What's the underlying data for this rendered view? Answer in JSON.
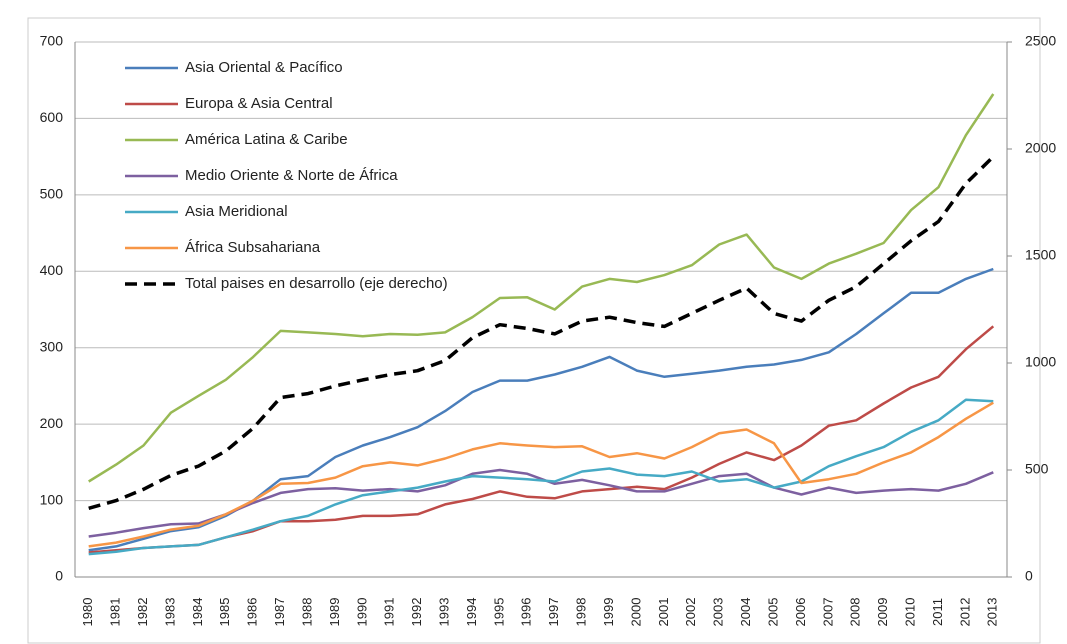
{
  "chart_data": {
    "type": "line",
    "categories": [
      "1980",
      "1981",
      "1982",
      "1983",
      "1984",
      "1985",
      "1986",
      "1987",
      "1988",
      "1989",
      "1990",
      "1991",
      "1992",
      "1993",
      "1994",
      "1995",
      "1996",
      "1997",
      "1998",
      "1999",
      "2000",
      "2001",
      "2002",
      "2003",
      "2004",
      "2005",
      "2006",
      "2007",
      "2008",
      "2009",
      "2010",
      "2011",
      "2012",
      "2013"
    ],
    "series": [
      {
        "name": "Asia Oriental & Pacífico",
        "color": "#4a7ebb",
        "values": [
          35,
          40,
          50,
          60,
          65,
          80,
          100,
          128,
          132,
          157,
          172,
          183,
          196,
          217,
          242,
          257,
          257,
          265,
          275,
          288,
          270,
          262,
          266,
          270,
          275,
          278,
          284,
          294,
          318,
          345,
          372,
          372,
          390,
          403
        ]
      },
      {
        "name": "Europa & Asia Central",
        "color": "#be4b48",
        "values": [
          32,
          35,
          38,
          40,
          42,
          52,
          60,
          73,
          73,
          75,
          80,
          80,
          82,
          95,
          102,
          112,
          105,
          103,
          112,
          115,
          118,
          115,
          130,
          148,
          163,
          153,
          172,
          198,
          205,
          227,
          248,
          262,
          298,
          328
        ]
      },
      {
        "name": "América Latina & Caribe",
        "color": "#98b954",
        "values": [
          125,
          147,
          172,
          215,
          237,
          258,
          288,
          322,
          320,
          318,
          315,
          318,
          317,
          320,
          340,
          365,
          366,
          350,
          380,
          390,
          386,
          395,
          408,
          435,
          448,
          405,
          390,
          410,
          423,
          437,
          480,
          510,
          578,
          632
        ]
      },
      {
        "name": "Medio Oriente & Norte de África",
        "color": "#7d60a0",
        "values": [
          53,
          58,
          64,
          69,
          70,
          82,
          97,
          110,
          115,
          116,
          113,
          115,
          112,
          120,
          135,
          140,
          135,
          122,
          127,
          120,
          112,
          112,
          122,
          132,
          135,
          117,
          108,
          117,
          110,
          113,
          115,
          113,
          122,
          137
        ]
      },
      {
        "name": "Asia Meridional",
        "color": "#46aac5",
        "values": [
          30,
          33,
          38,
          40,
          42,
          52,
          62,
          73,
          80,
          95,
          107,
          112,
          117,
          125,
          132,
          130,
          128,
          125,
          138,
          142,
          134,
          132,
          138,
          125,
          128,
          117,
          125,
          145,
          158,
          170,
          190,
          205,
          232,
          230
        ]
      },
      {
        "name": "África Subsahariana",
        "color": "#f79646",
        "values": [
          40,
          45,
          53,
          62,
          67,
          82,
          100,
          122,
          123,
          130,
          145,
          150,
          146,
          155,
          167,
          175,
          172,
          170,
          171,
          157,
          162,
          155,
          170,
          188,
          193,
          175,
          123,
          128,
          135,
          150,
          163,
          183,
          207,
          228
        ]
      },
      {
        "name": "Total paises en desarrollo (eje derecho)",
        "color": "#000000",
        "dashed": true,
        "axis": "y2",
        "values": [
          321,
          357,
          410,
          475,
          518,
          589,
          696,
          839,
          857,
          893,
          921,
          946,
          964,
          1011,
          1118,
          1179,
          1161,
          1136,
          1196,
          1214,
          1189,
          1171,
          1232,
          1293,
          1350,
          1232,
          1196,
          1293,
          1357,
          1464,
          1571,
          1661,
          1839,
          1964
        ]
      }
    ],
    "ylim": [
      0,
      700
    ],
    "yticks": [
      0,
      100,
      200,
      300,
      400,
      500,
      600,
      700
    ],
    "y2lim": [
      0,
      2500
    ],
    "y2ticks": [
      0,
      500,
      1000,
      1500,
      2000,
      2500
    ],
    "grid": true,
    "legend": "top-left"
  }
}
